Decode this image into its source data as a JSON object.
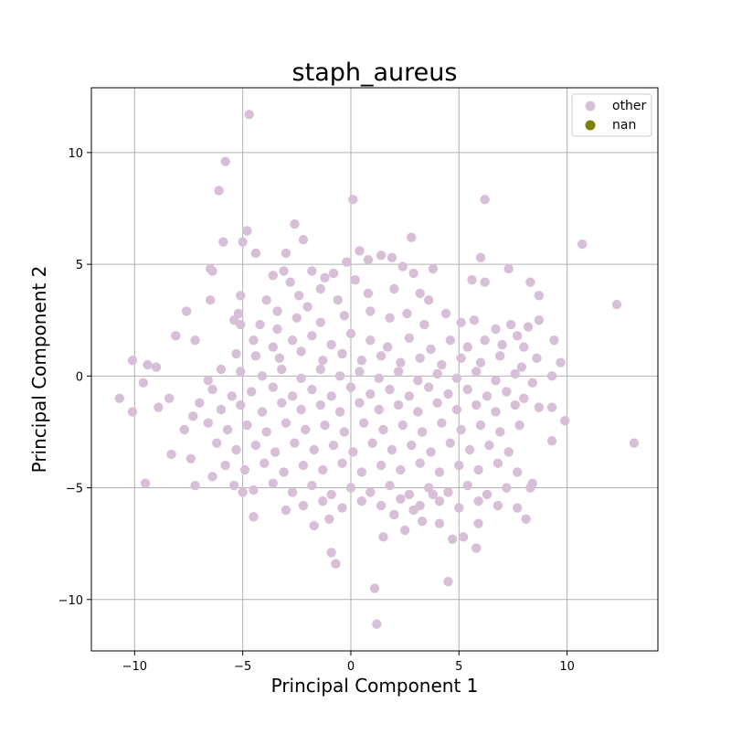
{
  "chart_data": {
    "type": "scatter",
    "title": "staph_aureus",
    "xlabel": "Principal Component 1",
    "ylabel": "Principal Component 2",
    "xlim": [
      -12.0,
      14.2
    ],
    "ylim": [
      -12.3,
      12.9
    ],
    "xticks": [
      -10,
      -5,
      0,
      5,
      10
    ],
    "yticks": [
      -10,
      -5,
      0,
      5,
      10
    ],
    "grid": true,
    "legend_position": "top-right",
    "series": [
      {
        "name": "other",
        "color": "#d8bfd8",
        "points": [
          [
            -4.7,
            11.7
          ],
          [
            -5.8,
            9.6
          ],
          [
            -6.1,
            8.3
          ],
          [
            0.1,
            7.9
          ],
          [
            6.2,
            7.9
          ],
          [
            -5.9,
            6.0
          ],
          [
            -5.0,
            6.0
          ],
          [
            -4.8,
            6.5
          ],
          [
            -2.6,
            6.8
          ],
          [
            -2.2,
            6.1
          ],
          [
            -4.4,
            5.5
          ],
          [
            -3.0,
            5.5
          ],
          [
            10.7,
            5.9
          ],
          [
            6.0,
            5.3
          ],
          [
            2.8,
            6.2
          ],
          [
            -6.5,
            4.8
          ],
          [
            -6.4,
            4.7
          ],
          [
            -3.6,
            4.5
          ],
          [
            -3.1,
            4.7
          ],
          [
            -1.8,
            4.7
          ],
          [
            7.3,
            4.8
          ],
          [
            5.6,
            4.3
          ],
          [
            6.2,
            4.2
          ],
          [
            8.3,
            4.2
          ],
          [
            8.7,
            3.6
          ],
          [
            12.3,
            3.2
          ],
          [
            -6.5,
            3.4
          ],
          [
            -5.1,
            3.6
          ],
          [
            -7.6,
            2.9
          ],
          [
            -5.2,
            2.8
          ],
          [
            -5.4,
            2.5
          ],
          [
            -5.1,
            2.3
          ],
          [
            8.7,
            2.5
          ],
          [
            8.2,
            2.2
          ],
          [
            9.4,
            1.6
          ],
          [
            -8.1,
            1.8
          ],
          [
            -7.2,
            1.6
          ],
          [
            -10.1,
            0.7
          ],
          [
            -9.4,
            0.5
          ],
          [
            -9.0,
            0.4
          ],
          [
            9.7,
            0.6
          ],
          [
            9.3,
            0.0
          ],
          [
            -6.6,
            -0.2
          ],
          [
            -9.6,
            -0.3
          ],
          [
            -10.7,
            -1.0
          ],
          [
            -8.4,
            -1.0
          ],
          [
            -8.9,
            -1.4
          ],
          [
            -10.1,
            -1.6
          ],
          [
            -7.3,
            -1.8
          ],
          [
            -7.7,
            -2.4
          ],
          [
            9.3,
            -1.4
          ],
          [
            9.9,
            -2.0
          ],
          [
            13.1,
            -3.0
          ],
          [
            9.3,
            -2.9
          ],
          [
            8.7,
            -1.4
          ],
          [
            -8.3,
            -3.5
          ],
          [
            -7.4,
            -3.7
          ],
          [
            -9.5,
            -4.8
          ],
          [
            -7.2,
            -4.9
          ],
          [
            -6.4,
            -4.5
          ],
          [
            -5.0,
            -5.2
          ],
          [
            -4.5,
            -6.3
          ],
          [
            -3.0,
            -6.0
          ],
          [
            -1.7,
            -6.7
          ],
          [
            -1.0,
            -6.4
          ],
          [
            -0.9,
            -7.9
          ],
          [
            -0.7,
            -8.4
          ],
          [
            1.1,
            -9.5
          ],
          [
            1.2,
            -11.1
          ],
          [
            4.5,
            -9.2
          ],
          [
            4.7,
            -7.3
          ],
          [
            5.2,
            -7.2
          ],
          [
            5.8,
            -7.7
          ],
          [
            5.9,
            -6.6
          ],
          [
            7.7,
            -5.9
          ],
          [
            8.1,
            -6.4
          ],
          [
            8.4,
            -4.8
          ],
          [
            8.3,
            -5.0
          ],
          [
            4.1,
            -6.6
          ],
          [
            3.3,
            -6.5
          ],
          [
            2.5,
            -6.9
          ],
          [
            2.0,
            -6.2
          ],
          [
            1.5,
            -7.2
          ],
          [
            2.9,
            -6.0
          ],
          [
            3.8,
            -5.3
          ],
          [
            -2.8,
            4.2
          ],
          [
            -3.9,
            3.4
          ],
          [
            -2.4,
            3.6
          ],
          [
            -1.4,
            3.9
          ],
          [
            -0.8,
            4.6
          ],
          [
            0.4,
            5.6
          ],
          [
            0.8,
            5.2
          ],
          [
            1.4,
            5.4
          ],
          [
            1.9,
            5.3
          ],
          [
            2.4,
            4.9
          ],
          [
            2.9,
            4.6
          ],
          [
            3.8,
            4.8
          ],
          [
            -0.2,
            5.1
          ],
          [
            -1.2,
            4.4
          ],
          [
            0.2,
            4.3
          ],
          [
            -3.4,
            2.9
          ],
          [
            -2.0,
            3.1
          ],
          [
            -0.6,
            3.4
          ],
          [
            0.8,
            3.7
          ],
          [
            2.0,
            3.9
          ],
          [
            3.2,
            3.7
          ],
          [
            3.6,
            3.4
          ],
          [
            -4.2,
            2.3
          ],
          [
            -3.4,
            2.1
          ],
          [
            -2.5,
            2.6
          ],
          [
            -1.4,
            2.4
          ],
          [
            -0.3,
            2.7
          ],
          [
            0.9,
            2.9
          ],
          [
            1.8,
            2.6
          ],
          [
            2.6,
            2.8
          ],
          [
            3.4,
            2.3
          ],
          [
            4.4,
            2.8
          ],
          [
            5.1,
            2.4
          ],
          [
            5.7,
            2.5
          ],
          [
            6.7,
            2.1
          ],
          [
            7.4,
            2.3
          ],
          [
            7.7,
            1.8
          ],
          [
            -4.5,
            1.6
          ],
          [
            -3.6,
            1.3
          ],
          [
            -2.7,
            1.6
          ],
          [
            -1.8,
            1.8
          ],
          [
            -0.9,
            1.4
          ],
          [
            0.0,
            1.9
          ],
          [
            0.9,
            1.6
          ],
          [
            1.7,
            1.3
          ],
          [
            2.7,
            1.7
          ],
          [
            3.7,
            1.2
          ],
          [
            4.6,
            1.6
          ],
          [
            5.4,
            1.3
          ],
          [
            6.2,
            1.6
          ],
          [
            7.0,
            1.4
          ],
          [
            8.0,
            1.3
          ],
          [
            -5.3,
            1.0
          ],
          [
            -4.4,
            0.9
          ],
          [
            -3.3,
            0.8
          ],
          [
            -2.3,
            1.1
          ],
          [
            -1.3,
            0.7
          ],
          [
            -0.4,
            1.0
          ],
          [
            0.5,
            0.7
          ],
          [
            1.4,
            0.9
          ],
          [
            2.3,
            0.6
          ],
          [
            3.2,
            0.8
          ],
          [
            4.2,
            0.5
          ],
          [
            5.1,
            0.8
          ],
          [
            6.0,
            0.6
          ],
          [
            6.9,
            0.9
          ],
          [
            7.9,
            0.4
          ],
          [
            8.6,
            0.8
          ],
          [
            -6.0,
            0.3
          ],
          [
            -5.1,
            0.2
          ],
          [
            -4.1,
            0.0
          ],
          [
            -3.2,
            0.3
          ],
          [
            -2.3,
            -0.1
          ],
          [
            -1.4,
            0.3
          ],
          [
            -0.5,
            0.0
          ],
          [
            0.4,
            0.2
          ],
          [
            1.3,
            -0.1
          ],
          [
            2.2,
            0.2
          ],
          [
            3.1,
            -0.2
          ],
          [
            4.0,
            0.1
          ],
          [
            4.9,
            -0.1
          ],
          [
            5.8,
            0.2
          ],
          [
            6.7,
            -0.2
          ],
          [
            7.6,
            0.1
          ],
          [
            8.4,
            -0.3
          ],
          [
            -6.4,
            -0.6
          ],
          [
            -5.5,
            -0.9
          ],
          [
            -4.6,
            -0.7
          ],
          [
            -3.6,
            -0.5
          ],
          [
            -2.7,
            -0.9
          ],
          [
            -1.8,
            -0.6
          ],
          [
            -0.9,
            -0.9
          ],
          [
            0.0,
            -0.5
          ],
          [
            0.9,
            -0.8
          ],
          [
            1.8,
            -0.6
          ],
          [
            2.7,
            -0.9
          ],
          [
            3.6,
            -0.5
          ],
          [
            4.5,
            -0.8
          ],
          [
            5.4,
            -0.6
          ],
          [
            6.3,
            -0.9
          ],
          [
            7.2,
            -0.7
          ],
          [
            8.0,
            -1.0
          ],
          [
            -7.0,
            -1.2
          ],
          [
            -6.0,
            -1.5
          ],
          [
            -5.1,
            -1.3
          ],
          [
            -4.1,
            -1.6
          ],
          [
            -3.2,
            -1.2
          ],
          [
            -2.3,
            -1.5
          ],
          [
            -1.4,
            -1.3
          ],
          [
            -0.5,
            -1.6
          ],
          [
            0.4,
            -1.2
          ],
          [
            1.3,
            -1.5
          ],
          [
            2.2,
            -1.3
          ],
          [
            3.1,
            -1.6
          ],
          [
            4.0,
            -1.2
          ],
          [
            4.9,
            -1.5
          ],
          [
            5.8,
            -1.3
          ],
          [
            6.7,
            -1.6
          ],
          [
            7.6,
            -1.3
          ],
          [
            -6.6,
            -2.1
          ],
          [
            -5.7,
            -2.4
          ],
          [
            -4.8,
            -2.2
          ],
          [
            -3.9,
            -2.5
          ],
          [
            -3.0,
            -2.1
          ],
          [
            -2.1,
            -2.4
          ],
          [
            -1.2,
            -2.2
          ],
          [
            -0.3,
            -2.5
          ],
          [
            0.6,
            -2.1
          ],
          [
            1.5,
            -2.4
          ],
          [
            2.4,
            -2.2
          ],
          [
            3.3,
            -2.5
          ],
          [
            4.2,
            -2.1
          ],
          [
            5.1,
            -2.4
          ],
          [
            6.0,
            -2.2
          ],
          [
            6.9,
            -2.5
          ],
          [
            7.8,
            -2.2
          ],
          [
            -6.2,
            -3.0
          ],
          [
            -5.3,
            -3.3
          ],
          [
            -4.4,
            -3.1
          ],
          [
            -3.5,
            -3.4
          ],
          [
            -2.6,
            -3.0
          ],
          [
            -1.7,
            -3.3
          ],
          [
            -0.8,
            -3.1
          ],
          [
            0.1,
            -3.4
          ],
          [
            1.0,
            -3.0
          ],
          [
            1.9,
            -3.3
          ],
          [
            2.8,
            -3.1
          ],
          [
            3.7,
            -3.4
          ],
          [
            4.6,
            -3.0
          ],
          [
            5.5,
            -3.3
          ],
          [
            6.4,
            -3.1
          ],
          [
            7.3,
            -3.4
          ],
          [
            -5.8,
            -4.0
          ],
          [
            -4.9,
            -4.2
          ],
          [
            -4.0,
            -3.9
          ],
          [
            -3.1,
            -4.3
          ],
          [
            -2.2,
            -4.0
          ],
          [
            -1.3,
            -4.2
          ],
          [
            -0.4,
            -3.9
          ],
          [
            0.5,
            -4.3
          ],
          [
            1.4,
            -4.0
          ],
          [
            2.3,
            -4.2
          ],
          [
            3.2,
            -3.9
          ],
          [
            4.1,
            -4.3
          ],
          [
            5.0,
            -4.0
          ],
          [
            5.9,
            -4.2
          ],
          [
            6.8,
            -3.9
          ],
          [
            7.7,
            -4.3
          ],
          [
            -5.4,
            -4.9
          ],
          [
            -4.5,
            -5.1
          ],
          [
            -3.6,
            -4.8
          ],
          [
            -2.7,
            -5.2
          ],
          [
            -1.8,
            -4.9
          ],
          [
            -0.9,
            -5.3
          ],
          [
            0.0,
            -5.0
          ],
          [
            0.9,
            -5.2
          ],
          [
            1.8,
            -4.9
          ],
          [
            2.7,
            -5.3
          ],
          [
            3.6,
            -5.0
          ],
          [
            4.5,
            -5.2
          ],
          [
            5.4,
            -4.9
          ],
          [
            6.3,
            -5.3
          ],
          [
            7.2,
            -5.0
          ],
          [
            -2.2,
            -5.8
          ],
          [
            -1.3,
            -5.6
          ],
          [
            -0.4,
            -5.9
          ],
          [
            0.5,
            -5.6
          ],
          [
            1.4,
            -5.8
          ],
          [
            2.3,
            -5.5
          ],
          [
            3.2,
            -5.8
          ],
          [
            4.1,
            -5.6
          ],
          [
            5.0,
            -5.9
          ],
          [
            5.9,
            -5.6
          ],
          [
            6.8,
            -5.8
          ]
        ]
      },
      {
        "name": "nan",
        "color": "#808000",
        "points": []
      }
    ]
  }
}
